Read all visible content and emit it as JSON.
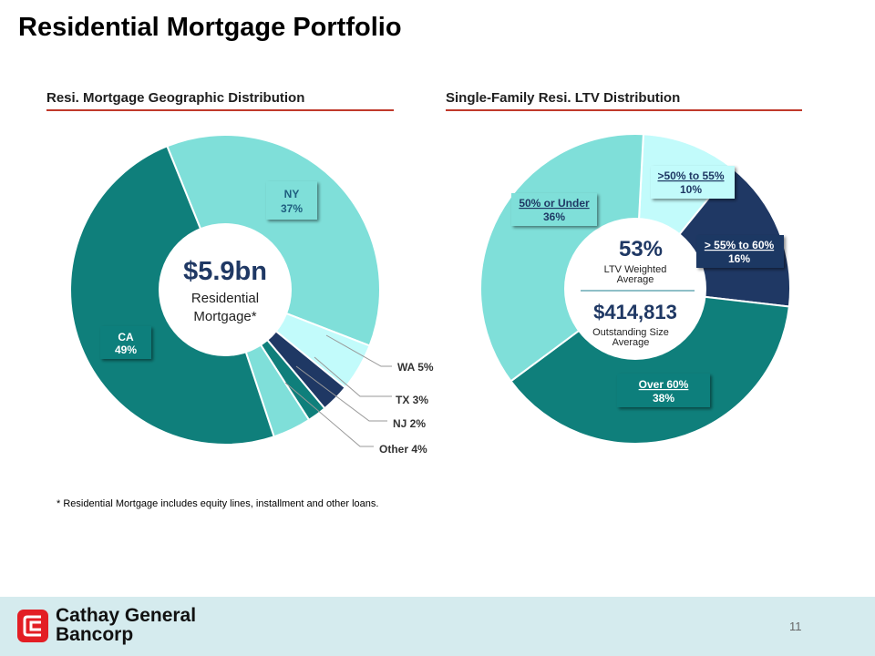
{
  "page": {
    "title": "Residential Mortgage Portfolio",
    "footnote": "* Residential Mortgage includes equity lines, installment and other loans.",
    "page_number": "11",
    "brand_line1": "Cathay General",
    "brand_line2": "Bancorp"
  },
  "left_chart": {
    "subtitle": "Resi. Mortgage Geographic Distribution",
    "center_value": "$5.9bn",
    "center_label_1": "Residential",
    "center_label_2": "Mortgage*"
  },
  "right_chart": {
    "subtitle": "Single-Family Resi. LTV Distribution",
    "center_value_1": "53%",
    "center_label_1a": "LTV Weighted",
    "center_label_1b": "Average",
    "center_value_2": "$414,813",
    "center_label_2a": "Outstanding Size",
    "center_label_2b": "Average"
  },
  "chart_data": [
    {
      "type": "pie",
      "title": "Resi. Mortgage Geographic Distribution",
      "categories": [
        "NY",
        "WA",
        "TX",
        "NJ",
        "Other",
        "CA"
      ],
      "values": [
        37,
        5,
        3,
        2,
        4,
        49
      ],
      "value_labels": [
        "37%",
        "5%",
        "3%",
        "2%",
        "4%",
        "49%"
      ],
      "outside_labels": [
        "",
        "WA 5%",
        "TX 3%",
        "NJ 2%",
        "Other 4%",
        ""
      ],
      "colors": [
        "#7fdfd9",
        "#c2fbfb",
        "#1f3864",
        "#0f7f7b",
        "#7fdfd9",
        "#0f7f7b"
      ],
      "center_text": "$5.9bn Residential Mortgage*"
    },
    {
      "type": "pie",
      "title": "Single-Family Resi. LTV Distribution",
      "categories": [
        ">50% to 55%",
        "> 55% to 60%",
        "Over 60%",
        "50% or Under"
      ],
      "values": [
        10,
        16,
        38,
        36
      ],
      "value_labels": [
        "10%",
        "16%",
        "38%",
        "36%"
      ],
      "colors": [
        "#c2fbfb",
        "#1f3864",
        "#0f7f7b",
        "#7fdfd9"
      ],
      "center_text": "53% LTV Weighted Average; $414,813 Outstanding Size Average"
    }
  ],
  "colors": {
    "accent_red": "#c0392b",
    "navy": "#1f3864",
    "teal_dark": "#0f7f7b",
    "teal_light": "#7fdfd9",
    "teal_pale": "#c2fbfb",
    "footer_bg": "#d5ebee",
    "logo_red": "#e31e24"
  },
  "icons": {
    "logo": "cathay-logo-icon"
  }
}
